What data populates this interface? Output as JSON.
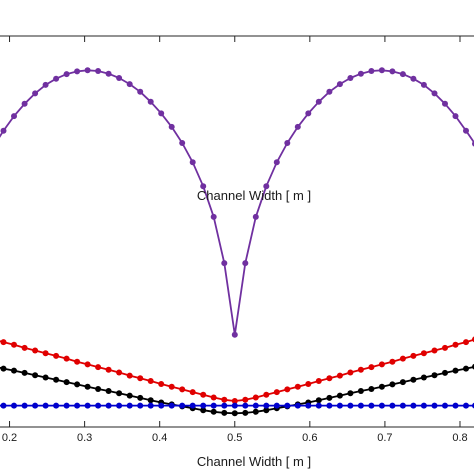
{
  "chart_data": {
    "type": "line",
    "title": "",
    "xlabel": "Channel Width [ m ]",
    "ylabel": "",
    "xticks": [
      "0.2",
      "0.3",
      "0.4",
      "0.5",
      "0.6",
      "0.7",
      "0.8"
    ],
    "xlim": [
      0.15,
      0.82
    ],
    "ylim": [
      0,
      1
    ],
    "grid": false,
    "series": [
      {
        "color": "#7030a0",
        "x": [
          0.15,
          0.164,
          0.178,
          0.192,
          0.206,
          0.22,
          0.234,
          0.248,
          0.262,
          0.276,
          0.29,
          0.304,
          0.318,
          0.332,
          0.346,
          0.36,
          0.374,
          0.388,
          0.402,
          0.416,
          0.43,
          0.444,
          0.458,
          0.472,
          0.486,
          0.5,
          0.514,
          0.528,
          0.542,
          0.556,
          0.57,
          0.584,
          0.598,
          0.612,
          0.626,
          0.64,
          0.654,
          0.668,
          0.682,
          0.696,
          0.71,
          0.724,
          0.738,
          0.752,
          0.766,
          0.78,
          0.794,
          0.808,
          0.82
        ],
        "y": [
          0.607,
          0.662,
          0.711,
          0.754,
          0.792,
          0.824,
          0.851,
          0.873,
          0.889,
          0.901,
          0.908,
          0.911,
          0.909,
          0.902,
          0.891,
          0.875,
          0.855,
          0.829,
          0.799,
          0.764,
          0.722,
          0.672,
          0.61,
          0.53,
          0.41,
          0.224,
          0.41,
          0.53,
          0.61,
          0.672,
          0.722,
          0.764,
          0.799,
          0.829,
          0.855,
          0.875,
          0.891,
          0.902,
          0.909,
          0.911,
          0.908,
          0.901,
          0.889,
          0.873,
          0.851,
          0.824,
          0.792,
          0.754,
          0.72
        ]
      },
      {
        "color": "#e00000",
        "x": [
          0.15,
          0.164,
          0.178,
          0.192,
          0.206,
          0.22,
          0.234,
          0.248,
          0.262,
          0.276,
          0.29,
          0.304,
          0.318,
          0.332,
          0.346,
          0.36,
          0.374,
          0.388,
          0.402,
          0.416,
          0.43,
          0.444,
          0.458,
          0.472,
          0.486,
          0.5,
          0.514,
          0.528,
          0.542,
          0.556,
          0.57,
          0.584,
          0.598,
          0.612,
          0.626,
          0.64,
          0.654,
          0.668,
          0.682,
          0.696,
          0.71,
          0.724,
          0.738,
          0.752,
          0.766,
          0.78,
          0.794,
          0.808,
          0.82
        ],
        "y": [
          0.226,
          0.219,
          0.212,
          0.205,
          0.198,
          0.19,
          0.183,
          0.176,
          0.169,
          0.162,
          0.154,
          0.147,
          0.14,
          0.133,
          0.126,
          0.118,
          0.111,
          0.104,
          0.096,
          0.089,
          0.082,
          0.075,
          0.068,
          0.061,
          0.055,
          0.052,
          0.055,
          0.061,
          0.068,
          0.075,
          0.082,
          0.089,
          0.096,
          0.104,
          0.111,
          0.118,
          0.126,
          0.133,
          0.14,
          0.147,
          0.154,
          0.162,
          0.169,
          0.176,
          0.183,
          0.19,
          0.198,
          0.205,
          0.212
        ]
      },
      {
        "color": "#000000",
        "x": [
          0.15,
          0.164,
          0.178,
          0.192,
          0.206,
          0.22,
          0.234,
          0.248,
          0.262,
          0.276,
          0.29,
          0.304,
          0.318,
          0.332,
          0.346,
          0.36,
          0.374,
          0.388,
          0.402,
          0.416,
          0.43,
          0.444,
          0.458,
          0.472,
          0.486,
          0.5,
          0.514,
          0.528,
          0.542,
          0.556,
          0.57,
          0.584,
          0.598,
          0.612,
          0.626,
          0.64,
          0.654,
          0.668,
          0.682,
          0.696,
          0.71,
          0.724,
          0.738,
          0.752,
          0.766,
          0.78,
          0.794,
          0.808,
          0.82
        ],
        "y": [
          0.154,
          0.148,
          0.142,
          0.136,
          0.131,
          0.125,
          0.119,
          0.113,
          0.107,
          0.101,
          0.095,
          0.089,
          0.083,
          0.078,
          0.072,
          0.066,
          0.06,
          0.054,
          0.048,
          0.043,
          0.038,
          0.033,
          0.028,
          0.024,
          0.021,
          0.02,
          0.021,
          0.024,
          0.028,
          0.033,
          0.038,
          0.043,
          0.048,
          0.054,
          0.06,
          0.066,
          0.072,
          0.078,
          0.083,
          0.089,
          0.095,
          0.101,
          0.107,
          0.113,
          0.119,
          0.125,
          0.131,
          0.136,
          0.141
        ]
      },
      {
        "color": "#0000cc",
        "x": [
          0.15,
          0.164,
          0.178,
          0.192,
          0.206,
          0.22,
          0.234,
          0.248,
          0.262,
          0.276,
          0.29,
          0.304,
          0.318,
          0.332,
          0.346,
          0.36,
          0.374,
          0.388,
          0.402,
          0.416,
          0.43,
          0.444,
          0.458,
          0.472,
          0.486,
          0.5,
          0.514,
          0.528,
          0.542,
          0.556,
          0.57,
          0.584,
          0.598,
          0.612,
          0.626,
          0.64,
          0.654,
          0.668,
          0.682,
          0.696,
          0.71,
          0.724,
          0.738,
          0.752,
          0.766,
          0.78,
          0.794,
          0.808,
          0.82
        ],
        "y": [
          0.04,
          0.04,
          0.04,
          0.04,
          0.04,
          0.04,
          0.04,
          0.04,
          0.04,
          0.04,
          0.04,
          0.04,
          0.04,
          0.04,
          0.04,
          0.04,
          0.04,
          0.04,
          0.04,
          0.04,
          0.04,
          0.04,
          0.04,
          0.04,
          0.04,
          0.04,
          0.04,
          0.04,
          0.04,
          0.04,
          0.04,
          0.04,
          0.04,
          0.04,
          0.04,
          0.04,
          0.04,
          0.04,
          0.04,
          0.04,
          0.04,
          0.04,
          0.04,
          0.04,
          0.04,
          0.04,
          0.04,
          0.04,
          0.04
        ]
      }
    ]
  }
}
